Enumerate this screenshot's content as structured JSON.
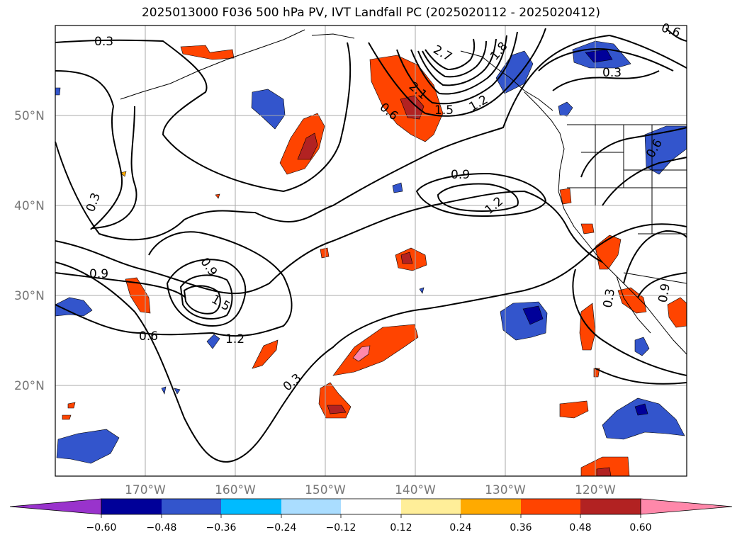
{
  "title": "2025013000 F036 500 hPa PV, IVT Landfall PC (2025020112 - 2025020412)",
  "map": {
    "lat_labels": [
      "50°N",
      "40°N",
      "30°N",
      "20°N"
    ],
    "lon_labels": [
      "170°W",
      "160°W",
      "150°W",
      "140°W",
      "130°W",
      "120°W"
    ],
    "contour_labels": [
      "0.3",
      "0.3",
      "0.3",
      "0.3",
      "0.6",
      "0.6",
      "0.9",
      "0.9",
      "1.2",
      "1.2",
      "1.5",
      "1.5",
      "2.1",
      "2.7",
      "1.2",
      "0.3",
      "0.6",
      "1.8",
      "0.9",
      "0.6",
      "0.9"
    ]
  },
  "colorbar": {
    "ticks": [
      "−0.60",
      "−0.48",
      "−0.36",
      "−0.24",
      "−0.12",
      "0.12",
      "0.24",
      "0.36",
      "0.48",
      "0.60"
    ],
    "colors": [
      "#9933cc",
      "#000099",
      "#3355cc",
      "#00bbff",
      "#aaddff",
      "#ffffff",
      "#ffee99",
      "#ffaa00",
      "#ff4400",
      "#b22222",
      "#ff88aa"
    ]
  }
}
